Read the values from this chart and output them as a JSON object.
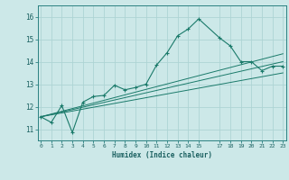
{
  "xlabel": "Humidex (Indice chaleur)",
  "bg_color": "#cce8e8",
  "grid_color": "#aed4d4",
  "line_color": "#1a7a6a",
  "spine_color": "#2a8080",
  "tick_color": "#1a6060",
  "xlim": [
    -0.3,
    23.3
  ],
  "ylim": [
    10.5,
    16.5
  ],
  "yticks": [
    11,
    12,
    13,
    14,
    15,
    16
  ],
  "xticks": [
    0,
    1,
    2,
    3,
    4,
    5,
    6,
    7,
    8,
    9,
    10,
    11,
    12,
    13,
    14,
    15,
    17,
    18,
    19,
    20,
    21,
    22,
    23
  ],
  "xtick_labels": [
    "0",
    "1",
    "2",
    "3",
    "4",
    "5",
    "6",
    "7",
    "8",
    "9",
    "10",
    "11",
    "12",
    "13",
    "14",
    "15",
    "17",
    "18",
    "19",
    "20",
    "21",
    "22",
    "23"
  ],
  "main_x": [
    0,
    1,
    2,
    3,
    4,
    5,
    6,
    7,
    8,
    9,
    10,
    11,
    12,
    13,
    14,
    15,
    17,
    18,
    19,
    20,
    21,
    22,
    23
  ],
  "main_y": [
    11.55,
    11.3,
    12.05,
    10.85,
    12.2,
    12.45,
    12.5,
    12.95,
    12.75,
    12.85,
    13.0,
    13.85,
    14.4,
    15.15,
    15.45,
    15.9,
    15.05,
    14.7,
    14.0,
    14.0,
    13.6,
    13.8,
    13.8
  ],
  "line1_x": [
    0,
    23
  ],
  "line1_y": [
    11.55,
    13.5
  ],
  "line2_x": [
    0,
    23
  ],
  "line2_y": [
    11.55,
    14.0
  ],
  "line3_x": [
    0,
    23
  ],
  "line3_y": [
    11.55,
    14.35
  ]
}
